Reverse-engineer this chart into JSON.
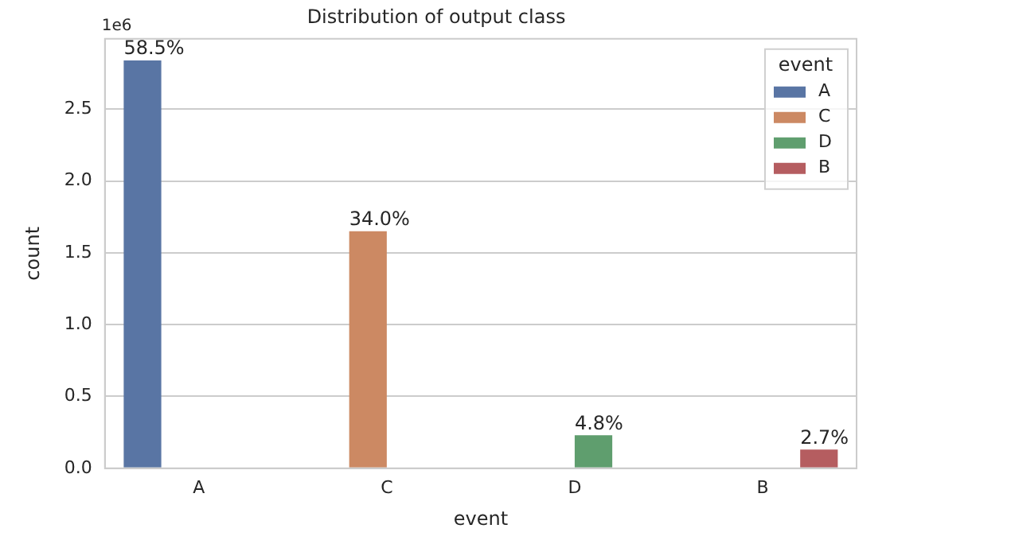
{
  "chart_data": {
    "type": "bar",
    "title": "Distribution of output class",
    "xlabel": "event",
    "ylabel": "count",
    "categories": [
      "A",
      "C",
      "D",
      "B"
    ],
    "series": [
      {
        "name": "A",
        "color": "#5975a4",
        "values": [
          2.84,
          null,
          null,
          null
        ]
      },
      {
        "name": "C",
        "color": "#cc8963",
        "values": [
          null,
          1.65,
          null,
          null
        ]
      },
      {
        "name": "D",
        "color": "#5f9e6e",
        "values": [
          null,
          null,
          0.23,
          null
        ]
      },
      {
        "name": "B",
        "color": "#b55d60",
        "values": [
          null,
          null,
          null,
          0.13
        ]
      }
    ],
    "ylim": [
      0,
      2.99
    ],
    "yticks": [
      {
        "value": 0,
        "label": "0.0"
      },
      {
        "value": 0.5,
        "label": "0.5"
      },
      {
        "value": 1,
        "label": "1.0"
      },
      {
        "value": 1.5,
        "label": "1.5"
      },
      {
        "value": 2,
        "label": "2.0"
      },
      {
        "value": 2.5,
        "label": "2.5"
      }
    ],
    "annotations": [
      "1e6",
      "58.5%",
      "34.0%",
      "4.8%",
      "2.7%"
    ],
    "legend_title": "event",
    "legend": "top right",
    "grid": "y"
  }
}
